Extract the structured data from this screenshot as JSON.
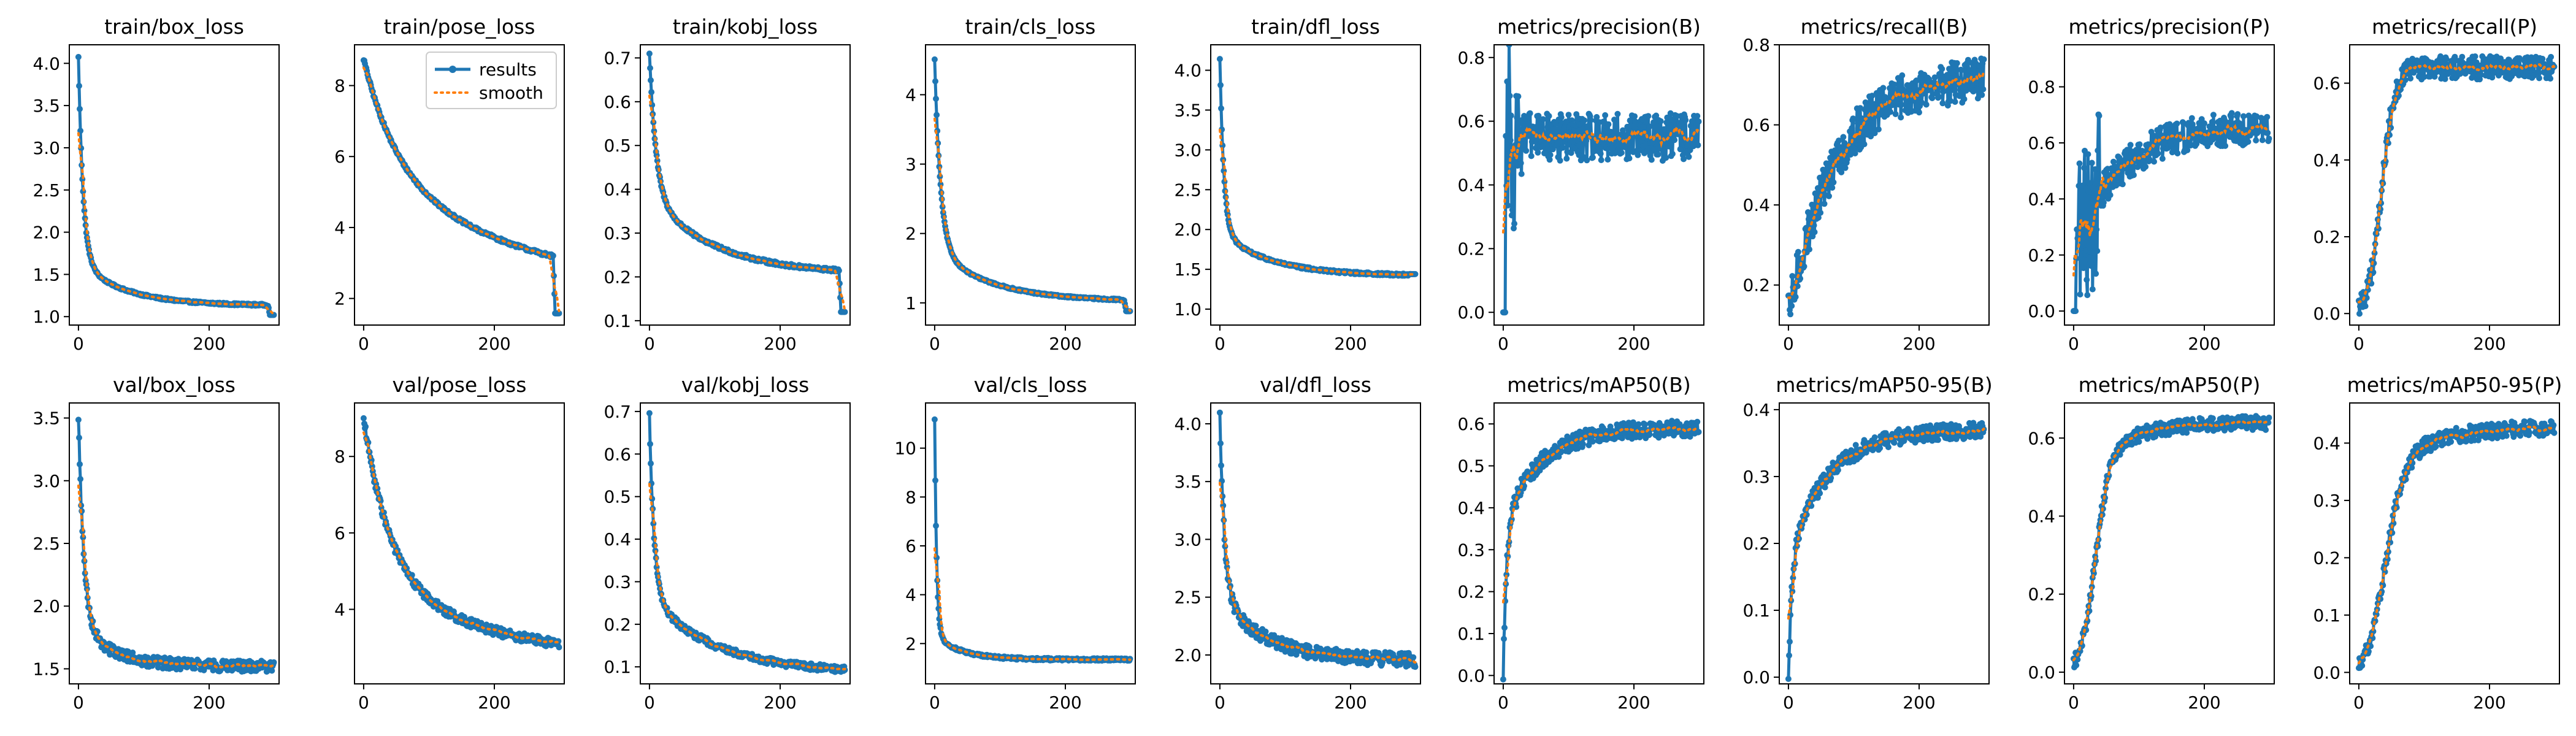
{
  "figure": {
    "background": "#ffffff",
    "line_color": "#1f77b4",
    "smooth_color": "#ff7f0e"
  },
  "legend": {
    "results_label": "results",
    "smooth_label": "smooth"
  },
  "chart_data": [
    {
      "type": "line",
      "title": "train/box_loss",
      "x_ticks": [
        0,
        200
      ],
      "y_ticks": [
        1.0,
        1.5,
        2.0,
        2.5,
        3.0,
        3.5,
        4.0
      ],
      "y_tick_labels": [
        "1.0",
        "1.5",
        "2.0",
        "2.5",
        "3.0",
        "3.5",
        "4.0"
      ],
      "xlim": [
        -14,
        307
      ],
      "ylim": [
        0.9,
        4.22
      ],
      "curve": {
        "y0": 4.07,
        "y_end": 1.13,
        "decay": 7,
        "knee": 0.52,
        "knee_rate": 70,
        "noise": 0.012,
        "drop_from": 290,
        "y_final": 1.02
      },
      "series": [
        {
          "name": "results",
          "x_range": [
            0,
            299
          ]
        },
        {
          "name": "smooth",
          "x_range": [
            0,
            299
          ]
        }
      ]
    },
    {
      "type": "line",
      "title": "train/pose_loss",
      "x_ticks": [
        0,
        200
      ],
      "y_ticks": [
        2,
        4,
        6,
        8
      ],
      "y_tick_labels": [
        "2",
        "4",
        "6",
        "8"
      ],
      "xlim": [
        -14,
        307
      ],
      "ylim": [
        1.25,
        9.15
      ],
      "legend_position": "upper-right",
      "curve": {
        "y0": 8.75,
        "y_end": 2.1,
        "decay": 50,
        "knee": 3.6,
        "knee_rate": 240,
        "noise": 0.045,
        "drop_from": 290,
        "y_final": 1.58
      },
      "series": [
        {
          "name": "results",
          "x_range": [
            0,
            299
          ]
        },
        {
          "name": "smooth",
          "x_range": [
            0,
            299
          ]
        }
      ]
    },
    {
      "type": "line",
      "title": "train/kobj_loss",
      "x_ticks": [
        0,
        200
      ],
      "y_ticks": [
        0.1,
        0.2,
        0.3,
        0.4,
        0.5,
        0.6,
        0.7
      ],
      "y_tick_labels": [
        "0.1",
        "0.2",
        "0.3",
        "0.4",
        "0.5",
        "0.6",
        "0.7"
      ],
      "xlim": [
        -14,
        307
      ],
      "ylim": [
        0.09,
        0.73
      ],
      "curve": {
        "y0": 0.71,
        "y_end": 0.205,
        "decay": 10,
        "knee": 0.18,
        "knee_rate": 100,
        "noise": 0.004,
        "drop_from": 290,
        "y_final": 0.12
      },
      "series": [
        {
          "name": "results",
          "x_range": [
            0,
            299
          ]
        },
        {
          "name": "smooth",
          "x_range": [
            0,
            299
          ]
        }
      ]
    },
    {
      "type": "line",
      "title": "train/cls_loss",
      "x_ticks": [
        0,
        200
      ],
      "y_ticks": [
        1,
        2,
        3,
        4
      ],
      "y_tick_labels": [
        "1",
        "2",
        "3",
        "4"
      ],
      "xlim": [
        -14,
        307
      ],
      "ylim": [
        0.68,
        4.72
      ],
      "curve": {
        "y0": 4.5,
        "y_end": 1.02,
        "decay": 9,
        "knee": 0.75,
        "knee_rate": 85,
        "noise": 0.012,
        "drop_from": 290,
        "y_final": 0.88
      },
      "series": [
        {
          "name": "results",
          "x_range": [
            0,
            299
          ]
        },
        {
          "name": "smooth",
          "x_range": [
            0,
            299
          ]
        }
      ]
    },
    {
      "type": "line",
      "title": "train/dfl_loss",
      "x_ticks": [
        0,
        200
      ],
      "y_ticks": [
        1.0,
        1.5,
        2.0,
        2.5,
        3.0,
        3.5,
        4.0
      ],
      "y_tick_labels": [
        "1.0",
        "1.5",
        "2.0",
        "2.5",
        "3.0",
        "3.5",
        "4.0"
      ],
      "xlim": [
        -14,
        307
      ],
      "ylim": [
        0.8,
        4.32
      ],
      "curve": {
        "y0": 4.15,
        "y_end": 1.42,
        "decay": 6,
        "knee": 0.55,
        "knee_rate": 75,
        "noise": 0.015,
        "drop_from": 290,
        "y_final": 1.44
      },
      "series": [
        {
          "name": "results",
          "x_range": [
            0,
            299
          ]
        },
        {
          "name": "smooth",
          "x_range": [
            0,
            299
          ]
        }
      ]
    },
    {
      "type": "line",
      "title": "metrics/precision(B)",
      "x_ticks": [
        0,
        200
      ],
      "y_ticks": [
        0.0,
        0.2,
        0.4,
        0.6,
        0.8
      ],
      "y_tick_labels": [
        "0.0",
        "0.2",
        "0.4",
        "0.6",
        "0.8"
      ],
      "xlim": [
        -14,
        307
      ],
      "ylim": [
        -0.04,
        0.84
      ],
      "curve": {
        "start_zeros": 4,
        "y_plateau": 0.55,
        "noise": 0.075,
        "early_spread": 0.25
      },
      "series": [
        {
          "name": "results",
          "x_range": [
            0,
            299
          ]
        },
        {
          "name": "smooth",
          "x_range": [
            0,
            299
          ]
        }
      ]
    },
    {
      "type": "line",
      "title": "metrics/recall(B)",
      "x_ticks": [
        0,
        200
      ],
      "y_ticks": [
        0.2,
        0.4,
        0.6,
        0.8
      ],
      "y_tick_labels": [
        "0.2",
        "0.4",
        "0.6",
        "0.8"
      ],
      "xlim": [
        -14,
        307
      ],
      "ylim": [
        0.1,
        0.8
      ],
      "curve": {
        "y0": 0.12,
        "y_end": 0.72,
        "rise": 70,
        "noise": 0.055
      },
      "series": [
        {
          "name": "results",
          "x_range": [
            0,
            299
          ]
        },
        {
          "name": "smooth",
          "x_range": [
            0,
            299
          ]
        }
      ]
    },
    {
      "type": "line",
      "title": "metrics/precision(P)",
      "x_ticks": [
        0,
        200
      ],
      "y_ticks": [
        0.0,
        0.2,
        0.4,
        0.6,
        0.8
      ],
      "y_tick_labels": [
        "0.0",
        "0.2",
        "0.4",
        "0.6",
        "0.8"
      ],
      "xlim": [
        -14,
        307
      ],
      "ylim": [
        -0.05,
        0.95
      ],
      "curve": {
        "start_zeros": 4,
        "y_end": 0.66,
        "rise": 60,
        "noise": 0.06,
        "early_spread": 0.3
      },
      "series": [
        {
          "name": "results",
          "x_range": [
            0,
            299
          ]
        },
        {
          "name": "smooth",
          "x_range": [
            0,
            299
          ]
        }
      ]
    },
    {
      "type": "line",
      "title": "metrics/recall(P)",
      "x_ticks": [
        0,
        200
      ],
      "y_ticks": [
        0.0,
        0.2,
        0.4,
        0.6
      ],
      "y_tick_labels": [
        "0.0",
        "0.2",
        "0.4",
        "0.6"
      ],
      "xlim": [
        -14,
        307
      ],
      "ylim": [
        -0.03,
        0.7
      ],
      "curve": {
        "y0": 0.0,
        "y_end": 0.64,
        "sigmoid_mid": 35,
        "sigmoid_w": 10,
        "noise": 0.03
      },
      "series": [
        {
          "name": "results",
          "x_range": [
            0,
            299
          ]
        },
        {
          "name": "smooth",
          "x_range": [
            0,
            299
          ]
        }
      ]
    },
    {
      "type": "line",
      "title": "val/box_loss",
      "x_ticks": [
        0,
        200
      ],
      "y_ticks": [
        1.5,
        2.0,
        2.5,
        3.0,
        3.5
      ],
      "y_tick_labels": [
        "1.5",
        "2.0",
        "2.5",
        "3.0",
        "3.5"
      ],
      "xlim": [
        -14,
        307
      ],
      "ylim": [
        1.38,
        3.62
      ],
      "curve": {
        "y0": 3.52,
        "y_end": 1.52,
        "decay": 8,
        "knee": 0.35,
        "knee_rate": 50,
        "noise": 0.045
      },
      "series": [
        {
          "name": "results",
          "x_range": [
            0,
            299
          ]
        },
        {
          "name": "smooth",
          "x_range": [
            0,
            299
          ]
        }
      ]
    },
    {
      "type": "line",
      "title": "val/pose_loss",
      "x_ticks": [
        0,
        200
      ],
      "y_ticks": [
        4,
        6,
        8
      ],
      "y_tick_labels": [
        "4",
        "6",
        "8"
      ],
      "xlim": [
        -14,
        307
      ],
      "ylim": [
        2.05,
        9.4
      ],
      "curve": {
        "y0": 9.0,
        "y_end": 2.6,
        "decay": 40,
        "knee": 2.2,
        "knee_rate": 200,
        "noise": 0.12
      },
      "series": [
        {
          "name": "results",
          "x_range": [
            0,
            299
          ]
        },
        {
          "name": "smooth",
          "x_range": [
            0,
            299
          ]
        }
      ]
    },
    {
      "type": "line",
      "title": "val/kobj_loss",
      "x_ticks": [
        0,
        200
      ],
      "y_ticks": [
        0.1,
        0.2,
        0.3,
        0.4,
        0.5,
        0.6,
        0.7
      ],
      "y_tick_labels": [
        "0.1",
        "0.2",
        "0.3",
        "0.4",
        "0.5",
        "0.6",
        "0.7"
      ],
      "xlim": [
        -14,
        307
      ],
      "ylim": [
        0.06,
        0.72
      ],
      "curve": {
        "y0": 0.69,
        "y_end": 0.085,
        "decay": 7,
        "knee": 0.18,
        "knee_rate": 100,
        "noise": 0.008
      },
      "series": [
        {
          "name": "results",
          "x_range": [
            0,
            299
          ]
        },
        {
          "name": "smooth",
          "x_range": [
            0,
            299
          ]
        }
      ]
    },
    {
      "type": "line",
      "title": "val/cls_loss",
      "x_ticks": [
        0,
        200
      ],
      "y_ticks": [
        2,
        4,
        6,
        8,
        10
      ],
      "y_tick_labels": [
        "2",
        "4",
        "6",
        "8",
        "10"
      ],
      "xlim": [
        -14,
        307
      ],
      "ylim": [
        0.35,
        11.85
      ],
      "curve": {
        "y0": 11.2,
        "y_end": 1.35,
        "decay": 3,
        "knee": 1.0,
        "knee_rate": 40,
        "noise": 0.05
      },
      "series": [
        {
          "name": "results",
          "x_range": [
            0,
            299
          ]
        },
        {
          "name": "smooth",
          "x_range": [
            0,
            299
          ]
        }
      ]
    },
    {
      "type": "line",
      "title": "val/dfl_loss",
      "x_ticks": [
        0,
        200
      ],
      "y_ticks": [
        2.0,
        2.5,
        3.0,
        3.5,
        4.0
      ],
      "y_tick_labels": [
        "2.0",
        "2.5",
        "3.0",
        "3.5",
        "4.0"
      ],
      "xlim": [
        -14,
        307
      ],
      "ylim": [
        1.75,
        4.18
      ],
      "curve": {
        "y0": 4.08,
        "y_end": 1.95,
        "decay": 7,
        "knee": 0.55,
        "knee_rate": 70,
        "noise": 0.06
      },
      "series": [
        {
          "name": "results",
          "x_range": [
            0,
            299
          ]
        },
        {
          "name": "smooth",
          "x_range": [
            0,
            299
          ]
        }
      ]
    },
    {
      "type": "line",
      "title": "metrics/mAP50(B)",
      "x_ticks": [
        0,
        200
      ],
      "y_ticks": [
        0.0,
        0.1,
        0.2,
        0.3,
        0.4,
        0.5,
        0.6
      ],
      "y_tick_labels": [
        "0.0",
        "0.1",
        "0.2",
        "0.3",
        "0.4",
        "0.5",
        "0.6"
      ],
      "xlim": [
        -14,
        307
      ],
      "ylim": [
        -0.02,
        0.65
      ],
      "curve": {
        "y0": 0.01,
        "y_end": 0.59,
        "rise": 55,
        "fast": 0.35,
        "fast_rate": 6,
        "noise": 0.02
      },
      "series": [
        {
          "name": "results",
          "x_range": [
            0,
            299
          ]
        },
        {
          "name": "smooth",
          "x_range": [
            0,
            299
          ]
        }
      ]
    },
    {
      "type": "line",
      "title": "metrics/mAP50-95(B)",
      "x_ticks": [
        0,
        200
      ],
      "y_ticks": [
        0.0,
        0.1,
        0.2,
        0.3,
        0.4
      ],
      "y_tick_labels": [
        "0.0",
        "0.1",
        "0.2",
        "0.3",
        "0.4"
      ],
      "xlim": [
        -14,
        307
      ],
      "ylim": [
        -0.01,
        0.41
      ],
      "curve": {
        "y0": 0.0,
        "y_end": 0.37,
        "rise": 60,
        "fast": 0.18,
        "fast_rate": 6,
        "noise": 0.012
      },
      "series": [
        {
          "name": "results",
          "x_range": [
            0,
            299
          ]
        },
        {
          "name": "smooth",
          "x_range": [
            0,
            299
          ]
        }
      ]
    },
    {
      "type": "line",
      "title": "metrics/mAP50(P)",
      "x_ticks": [
        0,
        200
      ],
      "y_ticks": [
        0.0,
        0.2,
        0.4,
        0.6
      ],
      "y_tick_labels": [
        "0.0",
        "0.2",
        "0.4",
        "0.6"
      ],
      "xlim": [
        -14,
        307
      ],
      "ylim": [
        -0.03,
        0.69
      ],
      "curve": {
        "y0": 0.0,
        "y_end": 0.64,
        "sigmoid_mid": 32,
        "sigmoid_w": 11,
        "slow": 60,
        "noise": 0.018
      },
      "series": [
        {
          "name": "results",
          "x_range": [
            0,
            299
          ]
        },
        {
          "name": "smooth",
          "x_range": [
            0,
            299
          ]
        }
      ]
    },
    {
      "type": "line",
      "title": "metrics/mAP50-95(P)",
      "x_ticks": [
        0,
        200
      ],
      "y_ticks": [
        0.0,
        0.1,
        0.2,
        0.3,
        0.4
      ],
      "y_tick_labels": [
        "0.0",
        "0.1",
        "0.2",
        "0.3",
        "0.4"
      ],
      "xlim": [
        -14,
        307
      ],
      "ylim": [
        -0.02,
        0.47
      ],
      "curve": {
        "y0": 0.0,
        "y_end": 0.43,
        "sigmoid_mid": 40,
        "sigmoid_w": 14,
        "slow": 80,
        "noise": 0.014
      },
      "series": [
        {
          "name": "results",
          "x_range": [
            0,
            299
          ]
        },
        {
          "name": "smooth",
          "x_range": [
            0,
            299
          ]
        }
      ]
    }
  ]
}
